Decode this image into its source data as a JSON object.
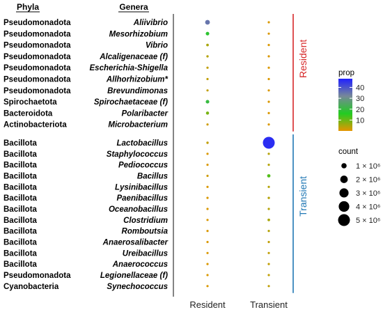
{
  "chart_data": {
    "type": "bubble",
    "headers": {
      "phyla": "Phyla",
      "genera": "Genera"
    },
    "x_categories": [
      "Resident",
      "Transient"
    ],
    "rows": [
      {
        "phylum": "Pseudomonadota",
        "genus": "Aliivibrio",
        "group": "Resident"
      },
      {
        "phylum": "Pseudomonadota",
        "genus": "Mesorhizobium",
        "group": "Resident"
      },
      {
        "phylum": "Pseudomonadota",
        "genus": "Vibrio",
        "group": "Resident"
      },
      {
        "phylum": "Pseudomonadota",
        "genus": "Alcaligenaceae (f)",
        "group": "Resident"
      },
      {
        "phylum": "Pseudomonadota",
        "genus": "Escherichia-Shigella",
        "group": "Resident"
      },
      {
        "phylum": "Pseudomonadota",
        "genus": "Allhorhizobium*",
        "group": "Resident"
      },
      {
        "phylum": "Pseudomonadota",
        "genus": "Brevundimonas",
        "group": "Resident"
      },
      {
        "phylum": "Spirochaetota",
        "genus": "Spirochaetaceae (f)",
        "group": "Resident"
      },
      {
        "phylum": "Bacteroidota",
        "genus": "Polaribacter",
        "group": "Resident"
      },
      {
        "phylum": "Actinobacteriota",
        "genus": "Microbacterium",
        "group": "Resident"
      },
      {
        "phylum": "Bacillota",
        "genus": "Lactobacillus",
        "group": "Transient"
      },
      {
        "phylum": "Bacillota",
        "genus": "Staphylococcus",
        "group": "Transient"
      },
      {
        "phylum": "Bacillota",
        "genus": "Pediococcus",
        "group": "Transient"
      },
      {
        "phylum": "Bacillota",
        "genus": "Bacillus",
        "group": "Transient"
      },
      {
        "phylum": "Bacillota",
        "genus": "Lysinibacillus",
        "group": "Transient"
      },
      {
        "phylum": "Bacillota",
        "genus": "Paenibacillus",
        "group": "Transient"
      },
      {
        "phylum": "Bacillota",
        "genus": "Oceanobacillus",
        "group": "Transient"
      },
      {
        "phylum": "Bacillota",
        "genus": "Clostridium",
        "group": "Transient"
      },
      {
        "phylum": "Bacillota",
        "genus": "Romboutsia",
        "group": "Transient"
      },
      {
        "phylum": "Bacillota",
        "genus": "Anaerosalibacter",
        "group": "Transient"
      },
      {
        "phylum": "Bacillota",
        "genus": "Ureibacillus",
        "group": "Transient"
      },
      {
        "phylum": "Bacillota",
        "genus": "Anaerococcus",
        "group": "Transient"
      },
      {
        "phylum": "Pseudomonadota",
        "genus": "Legionellaceae (f)",
        "group": "Transient"
      },
      {
        "phylum": "Cyanobacteria",
        "genus": "Synechococcus",
        "group": "Transient"
      }
    ],
    "points": [
      {
        "genus": "Aliivibrio",
        "x": "Resident",
        "prop": 35,
        "count": 800000
      },
      {
        "genus": "Aliivibrio",
        "x": "Transient",
        "prop": 1,
        "count": 60000
      },
      {
        "genus": "Mesorhizobium",
        "x": "Resident",
        "prop": 18,
        "count": 450000
      },
      {
        "genus": "Mesorhizobium",
        "x": "Transient",
        "prop": 1,
        "count": 30000
      },
      {
        "genus": "Vibrio",
        "x": "Resident",
        "prop": 5,
        "count": 250000
      },
      {
        "genus": "Vibrio",
        "x": "Transient",
        "prop": 1,
        "count": 40000
      },
      {
        "genus": "Alcaligenaceae (f)",
        "x": "Resident",
        "prop": 4,
        "count": 200000
      },
      {
        "genus": "Alcaligenaceae (f)",
        "x": "Transient",
        "prop": 1,
        "count": 30000
      },
      {
        "genus": "Escherichia-Shigella",
        "x": "Resident",
        "prop": 3,
        "count": 180000
      },
      {
        "genus": "Escherichia-Shigella",
        "x": "Transient",
        "prop": 1,
        "count": 30000
      },
      {
        "genus": "Allhorhizobium*",
        "x": "Resident",
        "prop": 3,
        "count": 160000
      },
      {
        "genus": "Allhorhizobium*",
        "x": "Transient",
        "prop": 1,
        "count": 30000
      },
      {
        "genus": "Brevundimonas",
        "x": "Resident",
        "prop": 3,
        "count": 150000
      },
      {
        "genus": "Brevundimonas",
        "x": "Transient",
        "prop": 1,
        "count": 30000
      },
      {
        "genus": "Spirochaetaceae (f)",
        "x": "Resident",
        "prop": 20,
        "count": 450000
      },
      {
        "genus": "Spirochaetaceae (f)",
        "x": "Transient",
        "prop": 1,
        "count": 30000
      },
      {
        "genus": "Polaribacter",
        "x": "Resident",
        "prop": 9,
        "count": 350000
      },
      {
        "genus": "Polaribacter",
        "x": "Transient",
        "prop": 1,
        "count": 30000
      },
      {
        "genus": "Microbacterium",
        "x": "Resident",
        "prop": 2,
        "count": 80000
      },
      {
        "genus": "Microbacterium",
        "x": "Transient",
        "prop": 1,
        "count": 30000
      },
      {
        "genus": "Lactobacillus",
        "x": "Resident",
        "prop": 3,
        "count": 200000
      },
      {
        "genus": "Lactobacillus",
        "x": "Transient",
        "prop": 46,
        "count": 5000000
      },
      {
        "genus": "Staphylococcus",
        "x": "Resident",
        "prop": 1,
        "count": 50000
      },
      {
        "genus": "Staphylococcus",
        "x": "Transient",
        "prop": 4,
        "count": 150000
      },
      {
        "genus": "Pediococcus",
        "x": "Resident",
        "prop": 1,
        "count": 50000
      },
      {
        "genus": "Pediococcus",
        "x": "Transient",
        "prop": 4,
        "count": 150000
      },
      {
        "genus": "Bacillus",
        "x": "Resident",
        "prop": 2,
        "count": 80000
      },
      {
        "genus": "Bacillus",
        "x": "Transient",
        "prop": 12,
        "count": 400000
      },
      {
        "genus": "Lysinibacillus",
        "x": "Resident",
        "prop": 1,
        "count": 50000
      },
      {
        "genus": "Lysinibacillus",
        "x": "Transient",
        "prop": 4,
        "count": 180000
      },
      {
        "genus": "Paenibacillus",
        "x": "Resident",
        "prop": 1,
        "count": 50000
      },
      {
        "genus": "Paenibacillus",
        "x": "Transient",
        "prop": 4,
        "count": 200000
      },
      {
        "genus": "Oceanobacillus",
        "x": "Resident",
        "prop": 1,
        "count": 50000
      },
      {
        "genus": "Oceanobacillus",
        "x": "Transient",
        "prop": 4,
        "count": 180000
      },
      {
        "genus": "Clostridium",
        "x": "Resident",
        "prop": 1,
        "count": 60000
      },
      {
        "genus": "Clostridium",
        "x": "Transient",
        "prop": 5,
        "count": 250000
      },
      {
        "genus": "Romboutsia",
        "x": "Resident",
        "prop": 1,
        "count": 50000
      },
      {
        "genus": "Romboutsia",
        "x": "Transient",
        "prop": 4,
        "count": 180000
      },
      {
        "genus": "Anaerosalibacter",
        "x": "Resident",
        "prop": 1,
        "count": 50000
      },
      {
        "genus": "Anaerosalibacter",
        "x": "Transient",
        "prop": 3,
        "count": 150000
      },
      {
        "genus": "Ureibacillus",
        "x": "Resident",
        "prop": 1,
        "count": 50000
      },
      {
        "genus": "Ureibacillus",
        "x": "Transient",
        "prop": 3,
        "count": 150000
      },
      {
        "genus": "Anaerococcus",
        "x": "Resident",
        "prop": 1,
        "count": 50000
      },
      {
        "genus": "Anaerococcus",
        "x": "Transient",
        "prop": 3,
        "count": 150000
      },
      {
        "genus": "Legionellaceae (f)",
        "x": "Resident",
        "prop": 1,
        "count": 50000
      },
      {
        "genus": "Legionellaceae (f)",
        "x": "Transient",
        "prop": 3,
        "count": 130000
      },
      {
        "genus": "Synechococcus",
        "x": "Resident",
        "prop": 1,
        "count": 50000
      },
      {
        "genus": "Synechococcus",
        "x": "Transient",
        "prop": 3,
        "count": 130000
      }
    ],
    "group_labels": [
      {
        "label": "Resident",
        "color": "#d62728"
      },
      {
        "label": "Transient",
        "color": "#1f77b4"
      }
    ],
    "color_legend": {
      "title": "prop",
      "ticks": [
        10,
        20,
        30,
        40
      ],
      "range": [
        0,
        48
      ],
      "gradient": [
        "#e69500",
        "#22cc22",
        "#778899",
        "#2020ff"
      ]
    },
    "size_legend": {
      "title": "count",
      "items": [
        {
          "value": 1000000,
          "label": "1 × 10⁶"
        },
        {
          "value": 2000000,
          "label": "2 × 10⁶"
        },
        {
          "value": 3000000,
          "label": "3 × 10⁶"
        },
        {
          "value": 4000000,
          "label": "4 × 10⁶"
        },
        {
          "value": 5000000,
          "label": "5 × 10⁶"
        }
      ]
    }
  }
}
